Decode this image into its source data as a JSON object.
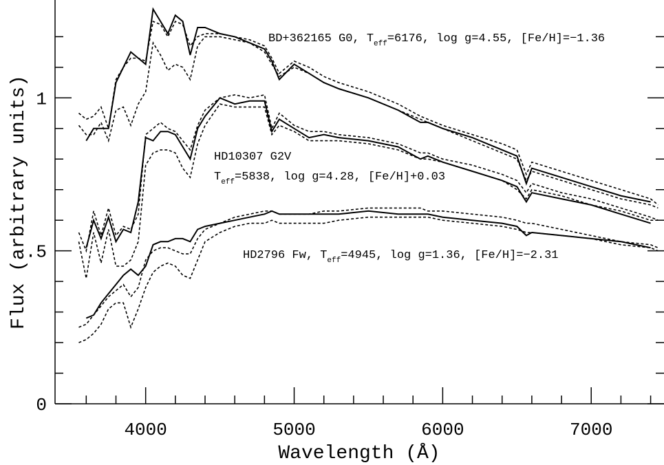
{
  "chart_data": {
    "type": "line",
    "xlabel": "Wavelength (Å)",
    "ylabel": "Flux (arbitrary units)",
    "xlim": [
      3390,
      7490
    ],
    "ylim": [
      0,
      1.32
    ],
    "xticks": [
      4000,
      5000,
      6000,
      7000
    ],
    "xminorticks": [
      3600,
      3800,
      4200,
      4400,
      4600,
      4800,
      5200,
      5400,
      5600,
      5800,
      6200,
      6400,
      6600,
      6800,
      7200,
      7400
    ],
    "yticks": [
      0,
      {
        "value": 0.5,
        "label": ".5"
      },
      1
    ],
    "yminorticks": [
      0.1,
      0.2,
      0.3,
      0.4,
      0.6,
      0.7,
      0.8,
      0.9,
      1.1,
      1.2
    ],
    "x": [
      3550,
      3600,
      3650,
      3700,
      3750,
      3800,
      3850,
      3900,
      3950,
      4000,
      4050,
      4100,
      4150,
      4200,
      4250,
      4300,
      4350,
      4400,
      4500,
      4600,
      4700,
      4800,
      4850,
      4900,
      5000,
      5100,
      5200,
      5300,
      5500,
      5700,
      5850,
      5900,
      6000,
      6200,
      6400,
      6500,
      6563,
      6600,
      6800,
      7000,
      7200,
      7400,
      7450
    ],
    "series": [
      {
        "color": "#000000",
        "dash": false,
        "values": [
          null,
          0.86,
          0.9,
          0.9,
          0.9,
          1.05,
          1.1,
          1.15,
          1.13,
          1.11,
          1.29,
          1.25,
          1.21,
          1.27,
          1.25,
          1.14,
          1.23,
          1.23,
          1.21,
          1.2,
          1.18,
          1.16,
          1.12,
          1.06,
          1.11,
          1.08,
          1.05,
          1.03,
          1.0,
          0.96,
          0.92,
          0.92,
          0.9,
          0.87,
          0.83,
          0.81,
          0.72,
          0.77,
          0.74,
          0.71,
          0.68,
          0.66,
          null
        ]
      },
      {
        "color": "#000000",
        "dash": true,
        "values": [
          0.95,
          0.93,
          0.94,
          0.97,
          0.9,
          1.06,
          1.1,
          1.13,
          1.13,
          1.12,
          1.25,
          1.24,
          1.2,
          1.25,
          1.24,
          1.17,
          1.2,
          1.21,
          1.21,
          1.2,
          1.19,
          1.17,
          1.13,
          1.08,
          1.12,
          1.1,
          1.07,
          1.05,
          1.02,
          0.98,
          0.94,
          0.93,
          0.91,
          0.88,
          0.85,
          0.83,
          0.75,
          0.79,
          0.76,
          0.73,
          0.7,
          0.67,
          0.65
        ]
      },
      {
        "color": "#000000",
        "dash": true,
        "values": [
          0.91,
          0.88,
          0.88,
          0.92,
          0.86,
          0.96,
          0.97,
          0.91,
          0.98,
          1.02,
          1.18,
          1.14,
          1.09,
          1.11,
          1.1,
          1.06,
          1.17,
          1.2,
          1.2,
          1.19,
          1.18,
          1.15,
          1.11,
          1.07,
          1.1,
          1.08,
          1.05,
          1.03,
          1.0,
          0.96,
          0.93,
          0.92,
          0.9,
          0.86,
          0.82,
          0.8,
          0.73,
          0.76,
          0.73,
          0.7,
          0.67,
          0.65,
          0.64
        ]
      },
      {
        "color": "#000000",
        "dash": false,
        "values": [
          null,
          0.51,
          0.6,
          0.54,
          0.61,
          0.53,
          0.57,
          0.56,
          0.66,
          0.87,
          0.86,
          0.89,
          0.89,
          0.88,
          0.84,
          0.8,
          0.9,
          0.94,
          1.0,
          0.98,
          0.99,
          0.99,
          0.89,
          0.93,
          0.9,
          0.87,
          0.88,
          0.87,
          0.86,
          0.84,
          0.8,
          0.81,
          0.79,
          0.76,
          0.73,
          0.71,
          0.66,
          0.69,
          0.67,
          0.65,
          0.62,
          0.59,
          null
        ]
      },
      {
        "color": "#000000",
        "dash": true,
        "values": [
          0.56,
          0.5,
          0.63,
          0.55,
          0.64,
          0.55,
          0.58,
          0.57,
          0.62,
          0.88,
          0.9,
          0.92,
          0.9,
          0.89,
          0.86,
          0.83,
          0.91,
          0.96,
          1.0,
          1.01,
          1.0,
          1.01,
          0.9,
          0.95,
          0.91,
          0.89,
          0.89,
          0.88,
          0.87,
          0.85,
          0.82,
          0.82,
          0.8,
          0.78,
          0.75,
          0.73,
          0.69,
          0.72,
          0.69,
          0.67,
          0.64,
          0.61,
          0.6
        ]
      },
      {
        "color": "#000000",
        "dash": true,
        "values": [
          0.53,
          0.41,
          0.56,
          0.46,
          0.57,
          0.45,
          0.45,
          0.47,
          0.53,
          0.78,
          0.82,
          0.83,
          0.83,
          0.82,
          0.77,
          0.74,
          0.85,
          0.91,
          0.98,
          0.97,
          0.97,
          0.97,
          0.88,
          0.91,
          0.89,
          0.86,
          0.86,
          0.86,
          0.85,
          0.83,
          0.8,
          0.8,
          0.79,
          0.76,
          0.73,
          0.7,
          0.67,
          0.7,
          0.68,
          0.65,
          0.63,
          0.6,
          0.6
        ]
      },
      {
        "color": "#000000",
        "dash": false,
        "values": [
          null,
          0.28,
          0.29,
          0.33,
          0.36,
          0.39,
          0.42,
          0.44,
          0.42,
          0.45,
          0.52,
          0.53,
          0.53,
          0.54,
          0.54,
          0.53,
          0.57,
          0.58,
          0.59,
          0.6,
          0.61,
          0.62,
          0.63,
          0.62,
          0.62,
          0.62,
          0.62,
          0.62,
          0.63,
          0.62,
          0.62,
          0.62,
          0.61,
          0.6,
          0.59,
          0.58,
          0.55,
          0.56,
          0.55,
          0.54,
          0.53,
          0.51,
          null
        ]
      },
      {
        "color": "#000000",
        "dash": true,
        "values": [
          0.25,
          0.26,
          0.29,
          0.32,
          0.35,
          0.37,
          0.39,
          0.35,
          0.38,
          0.47,
          0.5,
          0.51,
          0.51,
          0.5,
          0.49,
          0.49,
          0.54,
          0.57,
          0.59,
          0.61,
          0.62,
          0.63,
          0.63,
          0.62,
          0.62,
          0.62,
          0.63,
          0.63,
          0.64,
          0.64,
          0.64,
          0.63,
          0.63,
          0.62,
          0.61,
          0.6,
          0.59,
          0.59,
          0.57,
          0.55,
          0.53,
          0.52,
          0.51
        ]
      },
      {
        "color": "#000000",
        "dash": true,
        "values": [
          0.2,
          0.21,
          0.23,
          0.26,
          0.31,
          0.33,
          0.33,
          0.25,
          0.31,
          0.38,
          0.43,
          0.45,
          0.46,
          0.45,
          0.42,
          0.41,
          0.47,
          0.53,
          0.56,
          0.58,
          0.59,
          0.59,
          0.6,
          0.59,
          0.59,
          0.59,
          0.59,
          0.6,
          0.61,
          0.61,
          0.61,
          0.61,
          0.6,
          0.59,
          0.58,
          0.57,
          0.56,
          0.56,
          0.55,
          0.54,
          0.52,
          0.51,
          0.5
        ]
      }
    ],
    "annotations": [
      {
        "lines": [
          [
            "BD+362165 G0, T",
            "eff",
            "=6176, log g=4.55, [Fe/H]=−1.36"
          ]
        ]
      },
      {
        "lines": [
          [
            "HD10307 G2V"
          ],
          [
            "T",
            "eff",
            "=5838, log g=4.28, [Fe/H]+0.03"
          ]
        ]
      },
      {
        "lines": [
          [
            "HD2796 Fw, T",
            "eff",
            "=4945, log g=1.36, [Fe/H]=−2.31"
          ]
        ]
      }
    ]
  }
}
